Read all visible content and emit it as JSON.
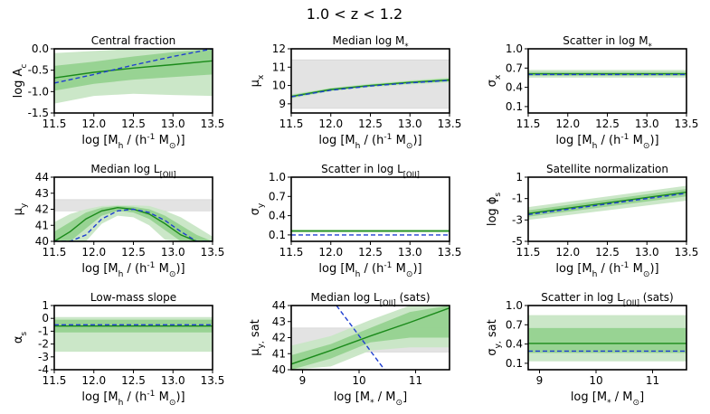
{
  "figure": {
    "suptitle": "1.0 < z < 1.2"
  },
  "colors": {
    "band_outer": "#c8e6c5",
    "band_inner": "#8fcf89",
    "band_mid": "#6cbf66",
    "median": "#1a8a1a",
    "truth": "#1f3fd1",
    "prior": "#e3e3e3",
    "prior_edge": "#cfcfcf"
  },
  "chart_data": [
    {
      "id": "central-fraction",
      "type": "line",
      "title": "Central fraction",
      "xlabel": "log [M_h / (h^-1 M_⊙)]",
      "ylabel": "log A_c",
      "xlim": [
        11.5,
        13.5
      ],
      "ylim": [
        -1.5,
        0.0
      ],
      "xticks": [
        "11.5",
        "12.0",
        "12.5",
        "13.0",
        "13.5"
      ],
      "yticks": [
        "0.0",
        "-0.5",
        "-1.0",
        "-1.5"
      ],
      "xtick_values": [
        11.5,
        12.0,
        12.5,
        13.0,
        13.5
      ],
      "ytick_values": [
        0.0,
        -0.5,
        -1.0,
        -1.5
      ],
      "grid": false,
      "x": [
        11.5,
        12.0,
        12.5,
        13.0,
        13.5
      ],
      "median": [
        -0.68,
        -0.55,
        -0.45,
        -0.37,
        -0.28
      ],
      "inner_lower": [
        -0.98,
        -0.82,
        -0.72,
        -0.66,
        -0.6
      ],
      "inner_upper": [
        -0.4,
        -0.3,
        -0.18,
        -0.08,
        0.0
      ],
      "outer_lower": [
        -1.28,
        -1.1,
        -1.05,
        -1.08,
        -1.1
      ],
      "outer_upper": [
        -0.1,
        -0.05,
        0.0,
        0.0,
        0.0
      ],
      "truth": [
        -0.8,
        -0.6,
        -0.38,
        -0.18,
        0.0
      ]
    },
    {
      "id": "median-logmstar",
      "type": "line",
      "title": "Median log M_*",
      "xlabel": "log [M_h / (h^-1 M_⊙)]",
      "ylabel": "μ_x",
      "xlim": [
        11.5,
        13.5
      ],
      "ylim": [
        8.5,
        12.0
      ],
      "xticks": [
        "11.5",
        "12.0",
        "12.5",
        "13.0",
        "13.5"
      ],
      "yticks": [
        "12",
        "11",
        "10",
        "9"
      ],
      "xtick_values": [
        11.5,
        12.0,
        12.5,
        13.0,
        13.5
      ],
      "ytick_values": [
        12,
        11,
        10,
        9
      ],
      "grid": false,
      "prior_band": [
        8.75,
        11.4
      ],
      "x": [
        11.5,
        12.0,
        12.5,
        13.0,
        13.5
      ],
      "median": [
        9.4,
        9.78,
        10.0,
        10.17,
        10.3
      ],
      "inner_lower": [
        9.33,
        9.72,
        9.94,
        10.1,
        10.22
      ],
      "inner_upper": [
        9.47,
        9.84,
        10.06,
        10.24,
        10.38
      ],
      "outer_lower": [
        9.28,
        9.68,
        9.9,
        10.05,
        10.16
      ],
      "outer_upper": [
        9.52,
        9.88,
        10.1,
        10.29,
        10.44
      ],
      "truth": [
        9.38,
        9.74,
        9.97,
        10.14,
        10.28
      ]
    },
    {
      "id": "scatter-logmstar",
      "type": "line",
      "title": "Scatter in log M_*",
      "xlabel": "log [M_h / (h^-1 M_⊙)]",
      "ylabel": "σ_x",
      "xlim": [
        11.5,
        13.5
      ],
      "ylim": [
        0.0,
        1.0
      ],
      "xticks": [
        "11.5",
        "12.0",
        "12.5",
        "13.0",
        "13.5"
      ],
      "yticks": [
        "1.0",
        "0.7",
        "0.4",
        "0.1"
      ],
      "xtick_values": [
        11.5,
        12.0,
        12.5,
        13.0,
        13.5
      ],
      "ytick_values": [
        1.0,
        0.7,
        0.4,
        0.1
      ],
      "grid": false,
      "x": [
        11.5,
        13.5
      ],
      "median": [
        0.61,
        0.61
      ],
      "inner_lower": [
        0.58,
        0.58
      ],
      "inner_upper": [
        0.64,
        0.64
      ],
      "outer_lower": [
        0.55,
        0.55
      ],
      "outer_upper": [
        0.67,
        0.67
      ],
      "truth": [
        0.6,
        0.6
      ]
    },
    {
      "id": "median-logloii",
      "type": "line",
      "title": "Median log L_[OII]",
      "xlabel": "log [M_h / (h^-1 M_⊙)]",
      "ylabel": "μ_y",
      "xlim": [
        11.5,
        13.5
      ],
      "ylim": [
        40.0,
        44.0
      ],
      "xticks": [
        "11.5",
        "12.0",
        "12.5",
        "13.0",
        "13.5"
      ],
      "yticks": [
        "44",
        "43",
        "42",
        "41",
        "40"
      ],
      "xtick_values": [
        11.5,
        12.0,
        12.5,
        13.0,
        13.5
      ],
      "ytick_values": [
        44,
        43,
        42,
        41,
        40
      ],
      "grid": false,
      "prior_band": [
        41.9,
        42.6
      ],
      "x": [
        11.5,
        11.7,
        11.9,
        12.1,
        12.3,
        12.5,
        12.7,
        12.9,
        13.1,
        13.3,
        13.5
      ],
      "median": [
        40.0,
        40.6,
        41.4,
        41.9,
        42.1,
        42.0,
        41.7,
        41.1,
        40.4,
        40.0,
        40.0
      ],
      "inner_lower": [
        40.0,
        40.0,
        40.8,
        41.6,
        41.9,
        41.8,
        41.4,
        40.7,
        40.0,
        40.0,
        40.0
      ],
      "inner_upper": [
        40.6,
        41.2,
        41.8,
        42.1,
        42.2,
        42.15,
        42.0,
        41.6,
        41.0,
        40.4,
        40.0
      ],
      "outer_lower": [
        40.0,
        40.0,
        40.0,
        41.1,
        41.6,
        41.5,
        41.0,
        40.1,
        40.0,
        40.0,
        40.0
      ],
      "outer_upper": [
        41.2,
        41.7,
        42.0,
        42.2,
        42.25,
        42.25,
        42.2,
        41.9,
        41.5,
        40.9,
        40.3
      ],
      "truth": [
        40.0,
        40.0,
        40.4,
        41.4,
        41.9,
        42.0,
        41.8,
        41.3,
        40.6,
        40.0,
        40.0
      ]
    },
    {
      "id": "scatter-logloii",
      "type": "line",
      "title": "Scatter in log L_[OII]",
      "xlabel": "log [M_h / (h^-1 M_⊙)]",
      "ylabel": "σ_y",
      "xlim": [
        11.5,
        13.5
      ],
      "ylim": [
        0.0,
        1.0
      ],
      "xticks": [
        "11.5",
        "12.0",
        "12.5",
        "13.0",
        "13.5"
      ],
      "yticks": [
        "1.0",
        "0.7",
        "0.4",
        "0.1"
      ],
      "xtick_values": [
        11.5,
        12.0,
        12.5,
        13.0,
        13.5
      ],
      "ytick_values": [
        1.0,
        0.7,
        0.4,
        0.1
      ],
      "grid": false,
      "x": [
        11.5,
        13.5
      ],
      "median": [
        0.16,
        0.16
      ],
      "inner_lower": [
        0.15,
        0.15
      ],
      "inner_upper": [
        0.175,
        0.175
      ],
      "outer_lower": [
        0.14,
        0.14
      ],
      "outer_upper": [
        0.185,
        0.185
      ],
      "truth": [
        0.1,
        0.1
      ]
    },
    {
      "id": "satellite-normalization",
      "type": "line",
      "title": "Satellite normalization",
      "xlabel": "log [M_h / (h^-1 M_⊙)]",
      "ylabel": "log ϕ_s",
      "xlim": [
        11.5,
        13.5
      ],
      "ylim": [
        -5.0,
        1.0
      ],
      "xticks": [
        "11.5",
        "12.0",
        "12.5",
        "13.0",
        "13.5"
      ],
      "yticks": [
        "1",
        "-1",
        "-3",
        "-5"
      ],
      "xtick_values": [
        11.5,
        12.0,
        12.5,
        13.0,
        13.5
      ],
      "ytick_values": [
        1,
        -1,
        -3,
        -5
      ],
      "grid": false,
      "x": [
        11.5,
        13.5
      ],
      "median": [
        -2.4,
        -0.4
      ],
      "inner_lower": [
        -2.7,
        -0.8
      ],
      "inner_upper": [
        -2.1,
        -0.1
      ],
      "outer_lower": [
        -3.0,
        -1.2
      ],
      "outer_upper": [
        -1.8,
        0.2
      ],
      "truth": [
        -2.5,
        -0.5
      ]
    },
    {
      "id": "low-mass-slope",
      "type": "line",
      "title": "Low-mass slope",
      "xlabel": "log [M_h / (h^-1 M_⊙)]",
      "ylabel": "α_s",
      "xlim": [
        11.5,
        13.5
      ],
      "ylim": [
        -4.0,
        1.0
      ],
      "xticks": [
        "11.5",
        "12.0",
        "12.5",
        "13.0",
        "13.5"
      ],
      "yticks": [
        "1",
        "0",
        "-1",
        "-2",
        "-3",
        "-4"
      ],
      "xtick_values": [
        11.5,
        12.0,
        12.5,
        13.0,
        13.5
      ],
      "ytick_values": [
        1,
        0,
        -1,
        -2,
        -3,
        -4
      ],
      "grid": false,
      "x": [
        11.5,
        13.5
      ],
      "median": [
        -0.6,
        -0.6
      ],
      "inner_lower": [
        -1.1,
        -1.1
      ],
      "inner_upper": [
        -0.1,
        -0.1
      ],
      "outer_lower": [
        -2.6,
        -2.6
      ],
      "outer_upper": [
        0.1,
        0.1
      ],
      "truth": [
        -0.5,
        -0.5
      ]
    },
    {
      "id": "median-logloii-sats",
      "type": "line",
      "title": "Median log L_[OII] (sats)",
      "xlabel": "log [M_* / M_⊙]",
      "ylabel": "μ_y, sat",
      "xlim": [
        8.8,
        11.6
      ],
      "ylim": [
        40.0,
        44.0
      ],
      "xticks": [
        "9",
        "10",
        "11"
      ],
      "yticks": [
        "44",
        "43",
        "42",
        "41",
        "40"
      ],
      "xtick_values": [
        9,
        10,
        11
      ],
      "ytick_values": [
        44,
        43,
        42,
        41,
        40
      ],
      "grid": false,
      "prior_band": [
        41.1,
        42.6
      ],
      "x": [
        8.8,
        9.5,
        10.2,
        10.9,
        11.6
      ],
      "median": [
        40.35,
        41.2,
        42.1,
        42.95,
        43.85
      ],
      "inner_lower": [
        40.0,
        40.7,
        41.7,
        42.0,
        42.0
      ],
      "inner_upper": [
        40.9,
        41.6,
        42.6,
        43.6,
        44.0
      ],
      "outer_lower": [
        40.0,
        40.2,
        41.2,
        41.4,
        41.4
      ],
      "outer_upper": [
        41.5,
        42.1,
        43.1,
        44.0,
        44.0
      ],
      "truth_line": {
        "x": [
          9.6,
          10.45
        ],
        "y": [
          44.0,
          40.0
        ]
      }
    },
    {
      "id": "scatter-logloii-sats",
      "type": "line",
      "title": "Scatter in log L_[OII] (sats)",
      "xlabel": "log [M_* / M_⊙]",
      "ylabel": "σ_y, sat",
      "xlim": [
        8.8,
        11.6
      ],
      "ylim": [
        0.0,
        1.0
      ],
      "xticks": [
        "9",
        "10",
        "11"
      ],
      "yticks": [
        "1.0",
        "0.7",
        "0.4",
        "0.1"
      ],
      "xtick_values": [
        9,
        10,
        11
      ],
      "ytick_values": [
        1.0,
        0.7,
        0.4,
        0.1
      ],
      "grid": false,
      "x": [
        8.8,
        11.6
      ],
      "median": [
        0.41,
        0.41
      ],
      "inner_lower": [
        0.26,
        0.26
      ],
      "inner_upper": [
        0.65,
        0.65
      ],
      "outer_lower": [
        0.13,
        0.13
      ],
      "outer_upper": [
        0.85,
        0.85
      ],
      "truth": [
        0.29,
        0.29
      ]
    }
  ]
}
